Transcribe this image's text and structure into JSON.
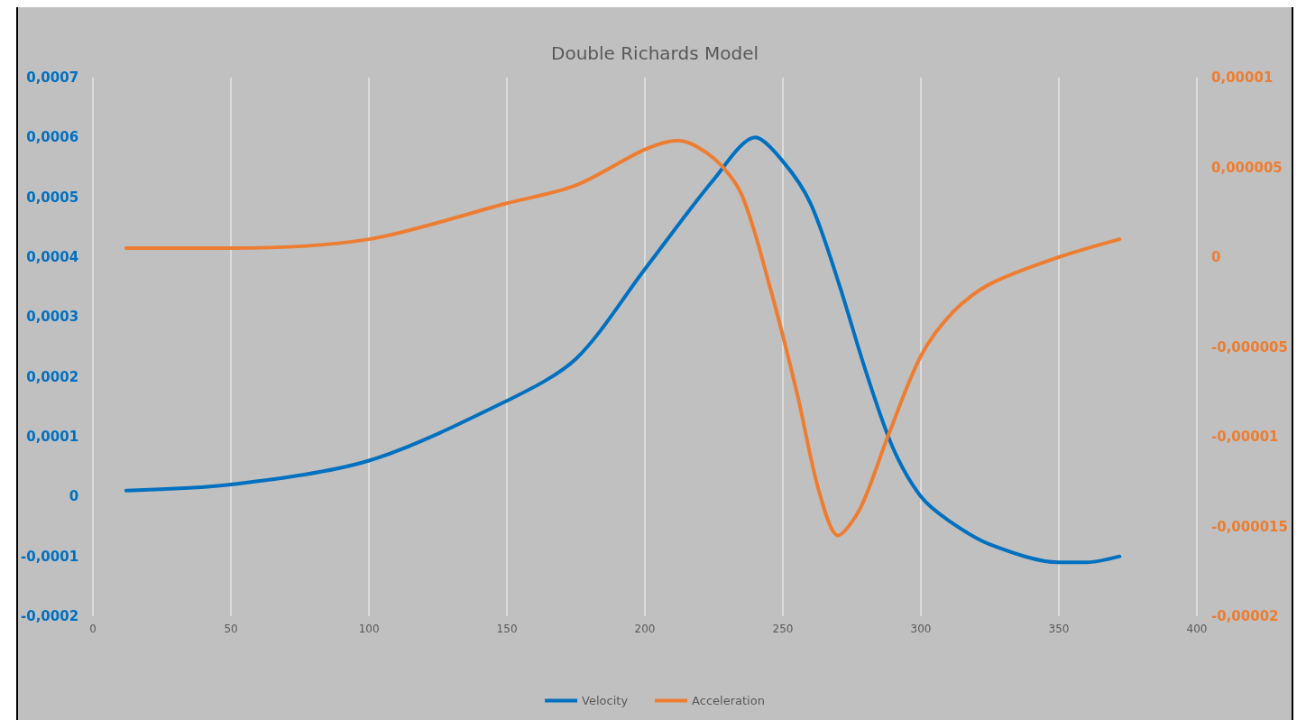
{
  "chart_data": {
    "type": "line",
    "title": "Double Richards Model",
    "xlim": [
      0,
      400
    ],
    "xticks": [
      0,
      50,
      100,
      150,
      200,
      250,
      300,
      350,
      400
    ],
    "ylim": [
      -0.0002,
      0.0007
    ],
    "yticks": [
      {
        "value": -0.0002,
        "label": "-0,0002"
      },
      {
        "value": -0.0001,
        "label": "-0,0001"
      },
      {
        "value": 0,
        "label": "0"
      },
      {
        "value": 0.0001,
        "label": "0,0001"
      },
      {
        "value": 0.0002,
        "label": "0,0002"
      },
      {
        "value": 0.0003,
        "label": "0,0003"
      },
      {
        "value": 0.0004,
        "label": "0,0004"
      },
      {
        "value": 0.0005,
        "label": "0,0005"
      },
      {
        "value": 0.0006,
        "label": "0,0006"
      },
      {
        "value": 0.0007,
        "label": "0,0007"
      }
    ],
    "y2lim": [
      -2e-05,
      1e-05
    ],
    "y2ticks": [
      {
        "value": -2e-05,
        "label": "-0,00002"
      },
      {
        "value": -1.5e-05,
        "label": "-0,000015"
      },
      {
        "value": -1e-05,
        "label": "-0,00001"
      },
      {
        "value": -5e-06,
        "label": "-0,000005"
      },
      {
        "value": 0,
        "label": "0"
      },
      {
        "value": 5e-06,
        "label": "0,000005"
      },
      {
        "value": 1e-05,
        "label": "0,00001"
      }
    ],
    "grid": "x",
    "legend": "bottom",
    "marker": "none",
    "line_style": "solid",
    "series": [
      {
        "name": "Velocity",
        "color": "#0070c0",
        "x": [
          12,
          50,
          100,
          150,
          175,
          200,
          225,
          240,
          250,
          260,
          270,
          280,
          290,
          300,
          310,
          325,
          350,
          360,
          372
        ],
        "values": [
          1e-05,
          2e-05,
          6e-05,
          0.00016,
          0.00023,
          0.00038,
          0.00053,
          0.0006,
          0.00056,
          0.00049,
          0.00036,
          0.00021,
          8e-05,
          0,
          -4e-05,
          -8e-05,
          -0.00011,
          -0.00011,
          -0.0001
        ]
      },
      {
        "name": "Acceleration",
        "color": "#ed7d31",
        "axis": "y2",
        "x": [
          12,
          50,
          100,
          150,
          175,
          200,
          212,
          225,
          235,
          245,
          255,
          263,
          270,
          278,
          288,
          300,
          312,
          325,
          350,
          372
        ],
        "values": [
          5e-07,
          5e-07,
          1e-06,
          3e-06,
          4e-06,
          6e-06,
          6.5e-06,
          5.5e-06,
          3.5e-06,
          -1.5e-06,
          -7.5e-06,
          -1.3e-05,
          -1.55e-05,
          -1.4e-05,
          -1e-05,
          -5.5e-06,
          -3e-06,
          -1.5e-06,
          0,
          1e-06
        ]
      }
    ]
  }
}
